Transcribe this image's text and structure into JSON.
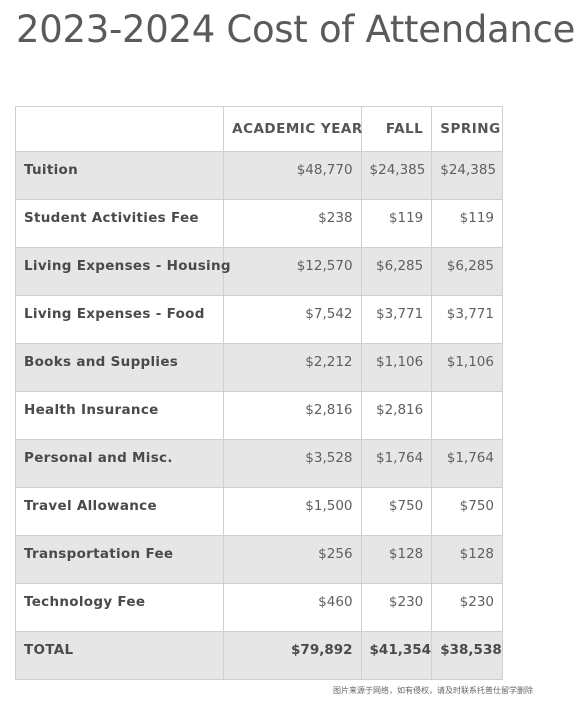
{
  "title": "2023-2024 Cost of Attendance",
  "table": {
    "headers": [
      "",
      "ACADEMIC YEAR",
      "FALL",
      "SPRING"
    ],
    "rows": [
      {
        "label": "Tuition",
        "year": "$48,770",
        "fall": "$24,385",
        "spring": "$24,385"
      },
      {
        "label": "Student Activities Fee",
        "year": "$238",
        "fall": "$119",
        "spring": "$119"
      },
      {
        "label": "Living Expenses - Housing",
        "year": "$12,570",
        "fall": "$6,285",
        "spring": "$6,285"
      },
      {
        "label": "Living Expenses - Food",
        "year": "$7,542",
        "fall": "$3,771",
        "spring": "$3,771"
      },
      {
        "label": "Books and Supplies",
        "year": "$2,212",
        "fall": "$1,106",
        "spring": "$1,106"
      },
      {
        "label": "Health Insurance",
        "year": "$2,816",
        "fall": "$2,816",
        "spring": ""
      },
      {
        "label": "Personal and Misc.",
        "year": "$3,528",
        "fall": "$1,764",
        "spring": "$1,764"
      },
      {
        "label": "Travel Allowance",
        "year": "$1,500",
        "fall": "$750",
        "spring": "$750"
      },
      {
        "label": "Transportation Fee",
        "year": "$256",
        "fall": "$128",
        "spring": "$128"
      },
      {
        "label": "Technology Fee",
        "year": "$460",
        "fall": "$230",
        "spring": "$230"
      },
      {
        "label": "TOTAL",
        "year": "$79,892",
        "fall": "$41,354",
        "spring": "$38,538"
      }
    ]
  },
  "watermark": "图片来源于网络，如有侵权，请及时联系托普仕留学删除",
  "colors": {
    "shaded_row": "#e6e6e6",
    "border": "#cfcfcf",
    "text": "#555555"
  }
}
